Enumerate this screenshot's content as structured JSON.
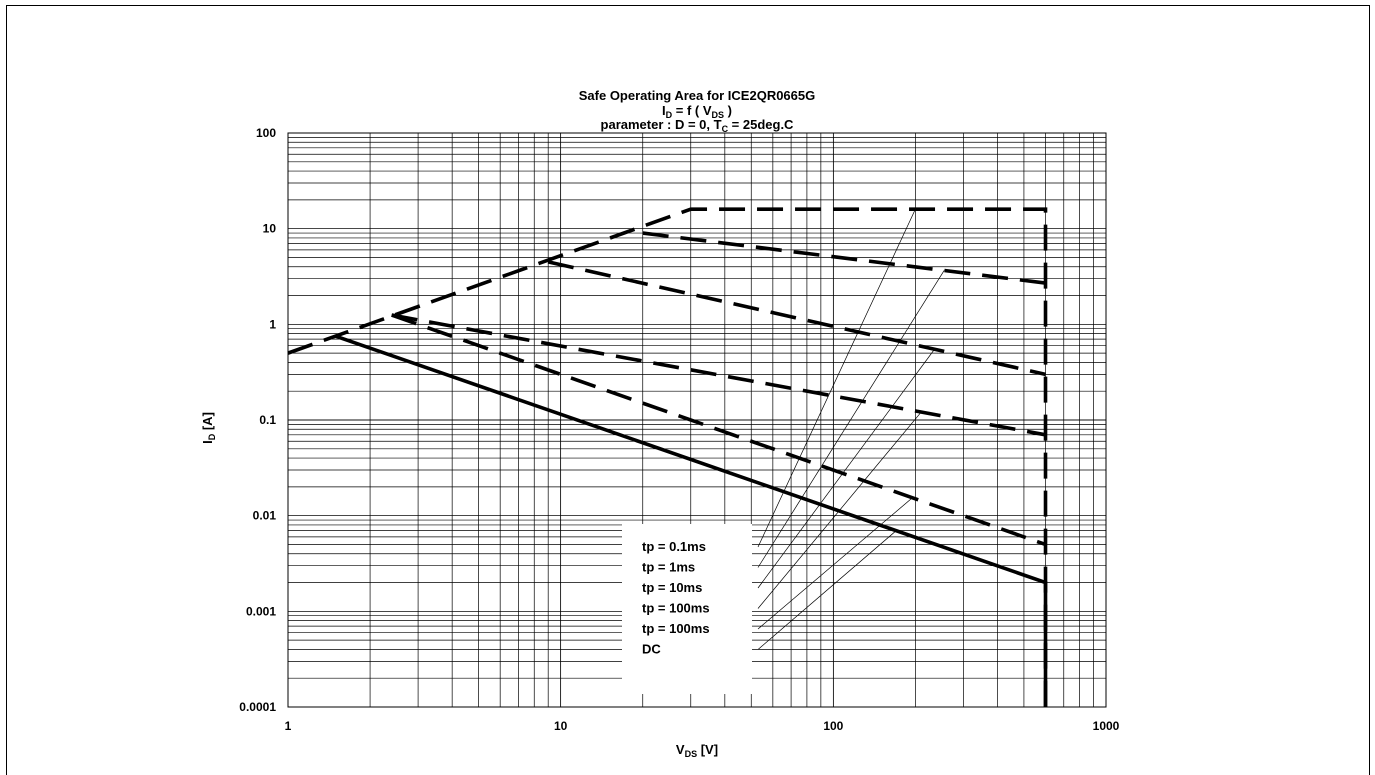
{
  "chart_data": {
    "type": "line",
    "title": "Safe Operating Area for ICE2QR0665G",
    "subtitle": {
      "prefix": "I",
      "prefix_sub": "D",
      "middle": " = f ( V",
      "middle_sub": "DS",
      "suffix": " )"
    },
    "parameter": {
      "prefix": "parameter : D = 0, T",
      "prefix_sub": "C",
      "suffix": " = 25deg.C"
    },
    "xlabel": {
      "main": "V",
      "sub": "DS",
      "unit": " [V]"
    },
    "ylabel": {
      "main": "I",
      "sub": "D",
      "unit": " [A]"
    },
    "xscale": "log",
    "yscale": "log",
    "xlim": [
      1,
      1000
    ],
    "ylim": [
      0.0001,
      100
    ],
    "x_ticks": [
      "1",
      "10",
      "100",
      "1000"
    ],
    "y_ticks": [
      "0.0001",
      "0.001",
      "0.01",
      "0.1",
      "1",
      "10",
      "100"
    ],
    "grid": true,
    "series": [
      {
        "name": "tp = 0.1ms",
        "style": "dashed",
        "x": [
          1,
          30,
          100,
          600,
          600
        ],
        "y": [
          0.5,
          16,
          16,
          16,
          0.0001
        ]
      },
      {
        "name": "tp = 1ms",
        "style": "dashed",
        "x": [
          20,
          600
        ],
        "y": [
          9,
          2.7
        ]
      },
      {
        "name": "tp = 10ms",
        "style": "dashed",
        "x": [
          9,
          600
        ],
        "y": [
          4.5,
          0.3
        ]
      },
      {
        "name": "tp = 100ms",
        "style": "dashed",
        "x": [
          2.4,
          600
        ],
        "y": [
          1.25,
          0.07
        ]
      },
      {
        "name": "tp = 100ms",
        "style": "dashed",
        "x": [
          2.4,
          600
        ],
        "y": [
          1.25,
          0.005
        ]
      },
      {
        "name": "DC",
        "style": "solid",
        "x": [
          1.5,
          600,
          600
        ],
        "y": [
          0.75,
          0.002,
          0.0001
        ]
      }
    ],
    "legend": {
      "placement": "bottom-center",
      "entries": [
        "tp = 0.1ms",
        "tp = 1ms",
        "tp = 10ms",
        "tp = 100ms",
        "tp = 100ms",
        "DC"
      ]
    }
  }
}
